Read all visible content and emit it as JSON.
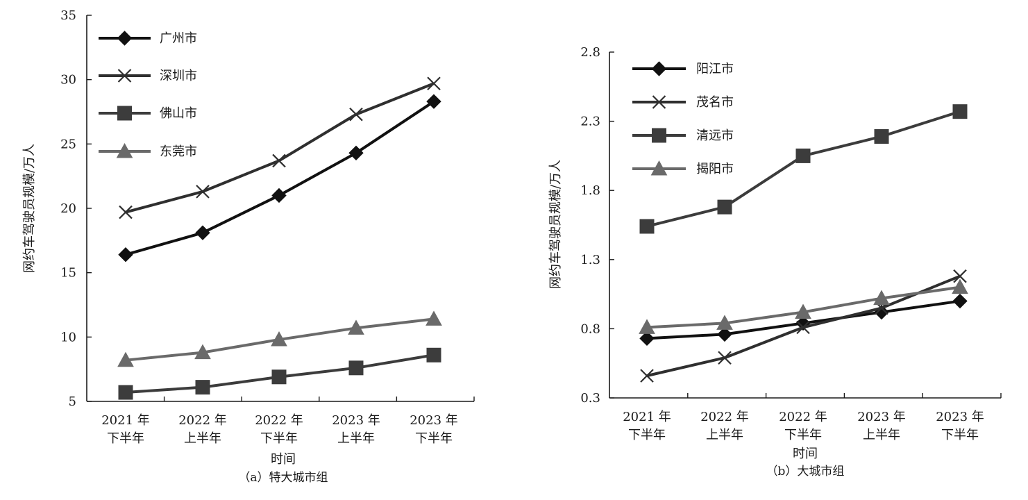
{
  "chart_data": [
    {
      "type": "line",
      "ylabel": "网约车驾驶员规模/万人",
      "xlabel": "时间",
      "caption": "（a）特大城市组",
      "ylim": [
        5,
        35
      ],
      "yticks": [
        "5",
        "10",
        "15",
        "20",
        "25",
        "30",
        "35"
      ],
      "categories": [
        {
          "line1": "2021 年",
          "line2": "下半年"
        },
        {
          "line1": "2022 年",
          "line2": "上半年"
        },
        {
          "line1": "2022 年",
          "line2": "下半年"
        },
        {
          "line1": "2023 年",
          "line2": "上半年"
        },
        {
          "line1": "2023 年",
          "line2": "下半年"
        }
      ],
      "legend_position": "top-left",
      "grid": false,
      "series": [
        {
          "name": "广州市",
          "marker": "diamond",
          "color": "#111111",
          "values": [
            16.4,
            18.1,
            21.0,
            24.3,
            28.3
          ]
        },
        {
          "name": "深圳市",
          "marker": "x",
          "color": "#2f2f2f",
          "values": [
            19.7,
            21.3,
            23.7,
            27.3,
            29.7
          ]
        },
        {
          "name": "佛山市",
          "marker": "square",
          "color": "#3c3c3c",
          "values": [
            5.7,
            6.1,
            6.9,
            7.6,
            8.6
          ]
        },
        {
          "name": "东莞市",
          "marker": "triangle",
          "color": "#6a6a6a",
          "values": [
            8.2,
            8.8,
            9.8,
            10.7,
            11.4
          ]
        }
      ]
    },
    {
      "type": "line",
      "ylabel": "网约车驾驶员规模/万人",
      "xlabel": "时间",
      "caption": "（b）大城市组",
      "ylim": [
        0.3,
        2.8
      ],
      "yticks": [
        "0.3",
        "0.8",
        "1.3",
        "1.8",
        "2.3",
        "2.8"
      ],
      "categories": [
        {
          "line1": "2021 年",
          "line2": "下半年"
        },
        {
          "line1": "2022 年",
          "line2": "上半年"
        },
        {
          "line1": "2022 年",
          "line2": "下半年"
        },
        {
          "line1": "2023 年",
          "line2": "上半年"
        },
        {
          "line1": "2023 年",
          "line2": "下半年"
        }
      ],
      "legend_position": "top-left",
      "grid": false,
      "series": [
        {
          "name": "阳江市",
          "marker": "diamond",
          "color": "#111111",
          "values": [
            0.73,
            0.76,
            0.84,
            0.92,
            1.0
          ]
        },
        {
          "name": "茂名市",
          "marker": "x",
          "color": "#2f2f2f",
          "values": [
            0.46,
            0.59,
            0.81,
            0.95,
            1.18
          ]
        },
        {
          "name": "清远市",
          "marker": "square",
          "color": "#3c3c3c",
          "values": [
            1.54,
            1.68,
            2.05,
            2.19,
            2.37
          ]
        },
        {
          "name": "揭阳市",
          "marker": "triangle",
          "color": "#6a6a6a",
          "values": [
            0.81,
            0.84,
            0.92,
            1.02,
            1.1
          ]
        }
      ]
    }
  ]
}
